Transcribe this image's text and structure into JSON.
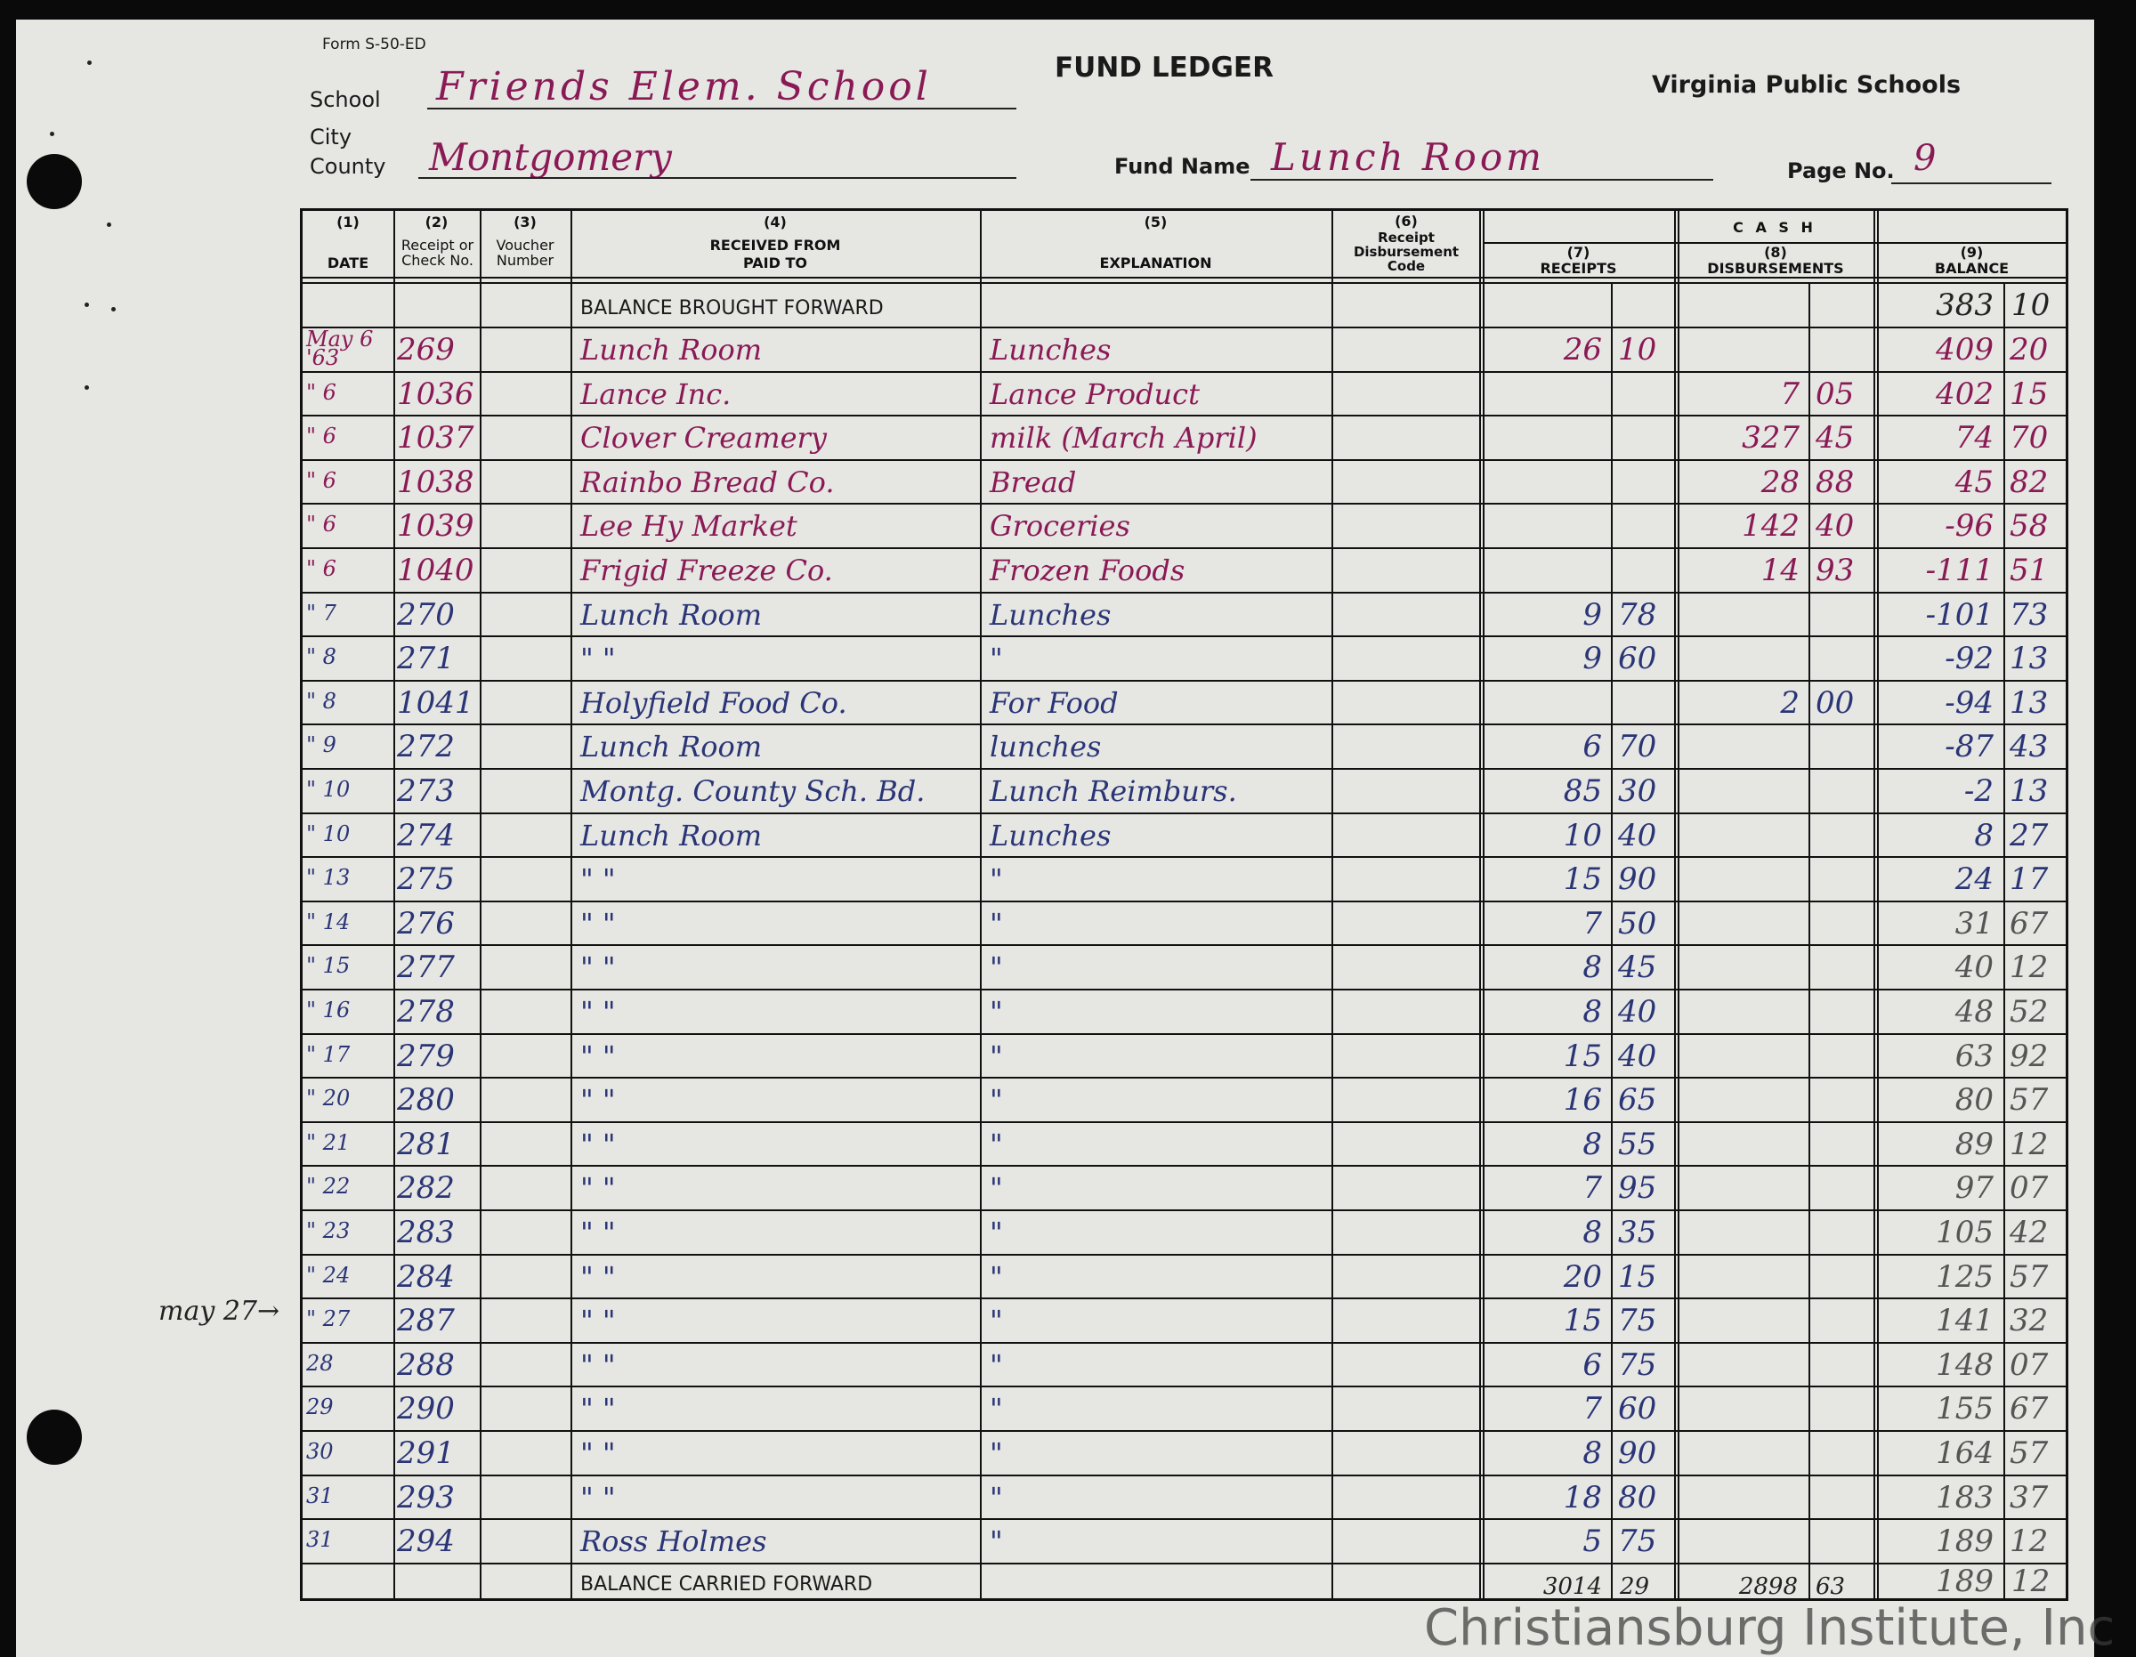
{
  "form": {
    "form_no": "Form S-50-ED",
    "title": "FUND LEDGER",
    "org": "Virginia Public Schools",
    "school_label": "School",
    "school": "Friends Elem. School",
    "city_label": "City",
    "county_label": "County",
    "county": "Montgomery",
    "fund_label": "Fund Name",
    "fund": "Lunch Room",
    "page_label": "Page No.",
    "page": "9"
  },
  "margin_note": "may 27→",
  "headers": {
    "c1n": "(1)",
    "c1": "DATE",
    "c2n": "(2)",
    "c2": "Receipt or Check No.",
    "c3n": "(3)",
    "c3": "Voucher Number",
    "c4n": "(4)",
    "c4a": "RECEIVED FROM",
    "c4b": "PAID TO",
    "c5n": "(5)",
    "c5": "EXPLANATION",
    "c6n": "(6)",
    "c6": "Receipt Disbursement Code",
    "cash": "C A S H",
    "c7n": "(7)",
    "c7": "RECEIPTS",
    "c8n": "(8)",
    "c8": "DISBURSEMENTS",
    "c9n": "(9)",
    "c9": "BALANCE"
  },
  "brought_forward": {
    "label": "BALANCE BROUGHT FORWARD",
    "bal_d": "383",
    "bal_c": "10"
  },
  "rows": [
    [
      "May 6 '63",
      "269",
      "Lunch Room",
      "Lunches",
      "26",
      "10",
      "",
      "",
      "409",
      "20",
      "mag"
    ],
    [
      "\" 6",
      "1036",
      "Lance Inc.",
      "Lance Product",
      "",
      "",
      "7",
      "05",
      "402",
      "15",
      "mag"
    ],
    [
      "\" 6",
      "1037",
      "Clover Creamery",
      "milk (March April)",
      "",
      "",
      "327",
      "45",
      "74",
      "70",
      "mag"
    ],
    [
      "\" 6",
      "1038",
      "Rainbo Bread Co.",
      "Bread",
      "",
      "",
      "28",
      "88",
      "45",
      "82",
      "mag"
    ],
    [
      "\" 6",
      "1039",
      "Lee Hy Market",
      "Groceries",
      "",
      "",
      "142",
      "40",
      "-96",
      "58",
      "mag"
    ],
    [
      "\" 6",
      "1040",
      "Frigid Freeze Co.",
      "Frozen Foods",
      "",
      "",
      "14",
      "93",
      "-111",
      "51",
      "mag"
    ],
    [
      "\" 7",
      "270",
      "Lunch Room",
      "Lunches",
      "9",
      "78",
      "",
      "",
      "-101",
      "73",
      "blue"
    ],
    [
      "\" 8",
      "271",
      "\"      \"",
      "\"",
      "9",
      "60",
      "",
      "",
      "-92",
      "13",
      "blue"
    ],
    [
      "\" 8",
      "1041",
      "Holyfield Food Co.",
      "For Food",
      "",
      "",
      "2",
      "00",
      "-94",
      "13",
      "blue"
    ],
    [
      "\" 9",
      "272",
      "Lunch Room",
      "lunches",
      "6",
      "70",
      "",
      "",
      "-87",
      "43",
      "blue"
    ],
    [
      "\" 10",
      "273",
      "Montg. County Sch. Bd.",
      "Lunch Reimburs.",
      "85",
      "30",
      "",
      "",
      "-2",
      "13",
      "blue"
    ],
    [
      "\" 10",
      "274",
      "Lunch Room",
      "Lunches",
      "10",
      "40",
      "",
      "",
      "8",
      "27",
      "blue"
    ],
    [
      "\" 13",
      "275",
      "\"      \"",
      "\"",
      "15",
      "90",
      "",
      "",
      "24",
      "17",
      "blue"
    ],
    [
      "\" 14",
      "276",
      "\"      \"",
      "\"",
      "7",
      "50",
      "",
      "",
      "31",
      "67",
      "blue"
    ],
    [
      "\" 15",
      "277",
      "\"      \"",
      "\"",
      "8",
      "45",
      "",
      "",
      "40",
      "12",
      "blue"
    ],
    [
      "\" 16",
      "278",
      "\"      \"",
      "\"",
      "8",
      "40",
      "",
      "",
      "48",
      "52",
      "blue"
    ],
    [
      "\" 17",
      "279",
      "\"      \"",
      "\"",
      "15",
      "40",
      "",
      "",
      "63",
      "92",
      "blue"
    ],
    [
      "\" 20",
      "280",
      "\"      \"",
      "\"",
      "16",
      "65",
      "",
      "",
      "80",
      "57",
      "blue"
    ],
    [
      "\" 21",
      "281",
      "\"      \"",
      "\"",
      "8",
      "55",
      "",
      "",
      "89",
      "12",
      "blue"
    ],
    [
      "\" 22",
      "282",
      "\"      \"",
      "\"",
      "7",
      "95",
      "",
      "",
      "97",
      "07",
      "blue"
    ],
    [
      "\" 23",
      "283",
      "\"      \"",
      "\"",
      "8",
      "35",
      "",
      "",
      "105",
      "42",
      "blue"
    ],
    [
      "\" 24",
      "284",
      "\"      \"",
      "\"",
      "20",
      "15",
      "",
      "",
      "125",
      "57",
      "blue"
    ],
    [
      "\" 27",
      "287",
      "\"      \"",
      "\"",
      "15",
      "75",
      "",
      "",
      "141",
      "32",
      "blue"
    ],
    [
      "28",
      "288",
      "\"      \"",
      "\"",
      "6",
      "75",
      "",
      "",
      "148",
      "07",
      "blue"
    ],
    [
      "29",
      "290",
      "\"      \"",
      "\"",
      "7",
      "60",
      "",
      "",
      "155",
      "67",
      "blue"
    ],
    [
      "30",
      "291",
      "\"      \"",
      "\"",
      "8",
      "90",
      "",
      "",
      "164",
      "57",
      "blue"
    ],
    [
      "31",
      "293",
      "\"      \"",
      "\"",
      "18",
      "80",
      "",
      "",
      "183",
      "37",
      "blue"
    ],
    [
      "31",
      "294",
      "Ross Holmes",
      "\"",
      "5",
      "75",
      "",
      "",
      "189",
      "12",
      "blue"
    ]
  ],
  "carried_forward": {
    "label": "BALANCE CARRIED FORWARD",
    "rec_d": "3014",
    "rec_c": "29",
    "dis_d": "2898",
    "dis_c": "63",
    "bal_d": "189",
    "bal_c": "12"
  },
  "watermark": "Christiansburg Institute, Inc",
  "colors": {
    "paper": "#e6e6e3",
    "magenta_ink": "#8a1a55",
    "blue_ink": "#2a3576"
  }
}
